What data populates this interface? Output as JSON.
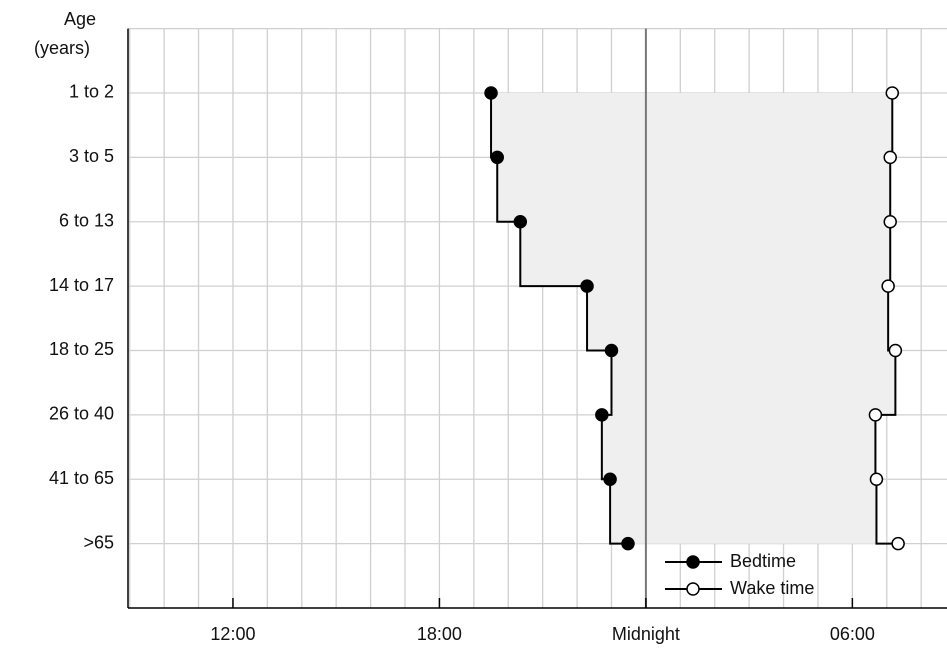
{
  "chart_data": {
    "type": "step-range",
    "y_label": [
      "Age",
      "(years)"
    ],
    "categories": [
      "1 to 2",
      "3 to 5",
      "6 to 13",
      "14 to 17",
      "18 to 25",
      "26 to 40",
      "41 to 65",
      ">65"
    ],
    "series": [
      {
        "name": "Bedtime",
        "color": "#000000",
        "marker_fill": "#000000",
        "values": [
          19.5,
          19.68,
          20.35,
          22.29,
          23.0,
          22.72,
          22.96,
          23.48
        ]
      },
      {
        "name": "Wake time",
        "color": "#000000",
        "marker_fill": "#ffffff",
        "values": [
          31.16,
          31.1,
          31.1,
          31.04,
          31.25,
          30.67,
          30.7,
          31.33
        ]
      }
    ],
    "shade_color": "#efefef",
    "xlim": [
      8.95,
      32.75
    ],
    "xticks": [
      {
        "value": 12,
        "label": "12:00"
      },
      {
        "value": 18,
        "label": "18:00"
      },
      {
        "value": 24,
        "label": "Midnight"
      },
      {
        "value": 30,
        "label": "06:00"
      }
    ],
    "midline": 24,
    "grid": true,
    "legend": "lower-center"
  }
}
